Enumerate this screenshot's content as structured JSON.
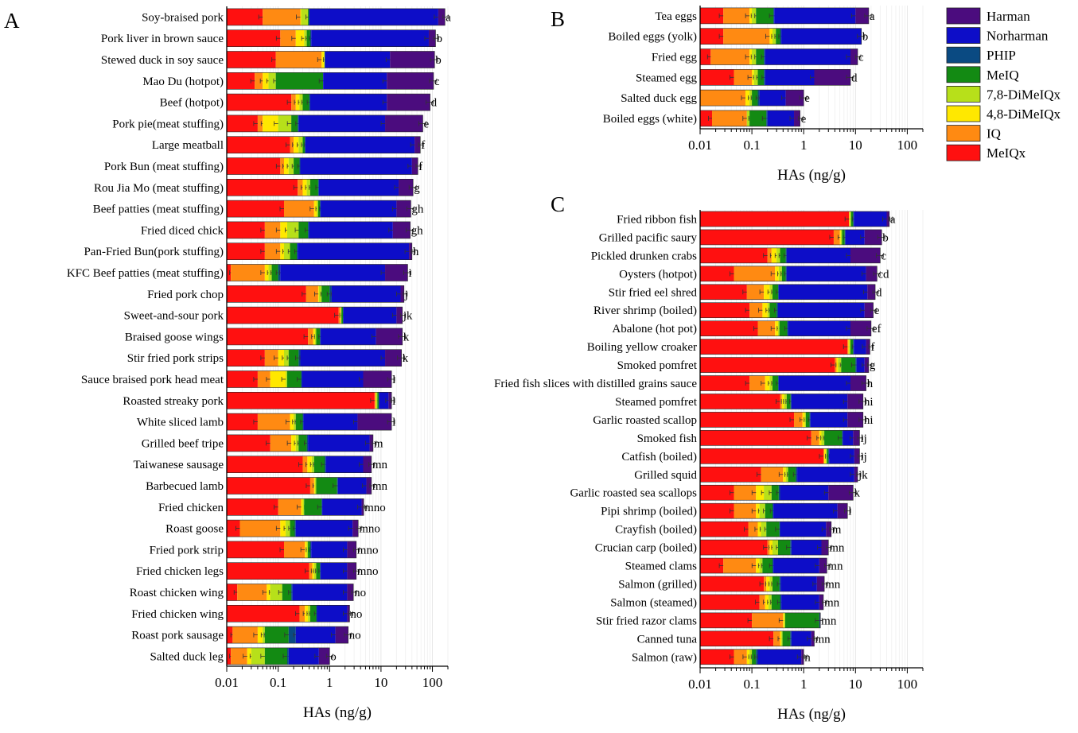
{
  "legend": {
    "items": [
      {
        "name": "Harman",
        "color": "#4b0c7e"
      },
      {
        "name": "Norharman",
        "color": "#0d0dc8"
      },
      {
        "name": "PHIP",
        "color": "#0a4a82"
      },
      {
        "name": "MeIQ",
        "color": "#138a13"
      },
      {
        "name": "7,8-DiMeIQx",
        "color": "#b7e01a"
      },
      {
        "name": "4,8-DiMeIQx",
        "color": "#ffe800"
      },
      {
        "name": "IQ",
        "color": "#ff8a12"
      },
      {
        "name": "MeIQx",
        "color": "#ff1010"
      }
    ]
  },
  "chart_data": [
    {
      "type": "bar",
      "panel_label": "A",
      "orientation": "horizontal-stacked",
      "xscale": "log",
      "xlim": [
        0.01,
        200
      ],
      "xticks": [
        "0.01",
        "0.1",
        "1",
        "10",
        "100"
      ],
      "xlabel": "HAs (ng/g)",
      "stack_order": [
        "MeIQx",
        "IQ",
        "4,8-DiMeIQx",
        "7,8-DiMeIQx",
        "MeIQ",
        "PHIP",
        "Norharman",
        "Harman"
      ],
      "categories": [
        {
          "name": "Soy-braised pork",
          "group": "a",
          "b": [
            0.05,
            0.27,
            0.28,
            0.38,
            0.4,
            0.4,
            130,
            175
          ]
        },
        {
          "name": "Pork liver in brown sauce",
          "group": "b",
          "b": [
            0.11,
            0.22,
            0.32,
            0.36,
            0.42,
            0.44,
            85,
            115
          ]
        },
        {
          "name": "Stewed duck in soy sauce",
          "group": "b",
          "b": [
            0.09,
            0.7,
            0.78,
            0.8,
            0.8,
            0.82,
            15,
            110
          ]
        },
        {
          "name": "Mao Du (hotpot)",
          "group": "c",
          "b": [
            0.035,
            0.05,
            0.065,
            0.09,
            0.75,
            0.75,
            13,
            105
          ]
        },
        {
          "name": "Beef (hotpot)",
          "group": "d",
          "b": [
            0.18,
            0.22,
            0.26,
            0.3,
            0.4,
            0.42,
            13,
            90
          ]
        },
        {
          "name": "Pork pie(meat stuffing)",
          "group": "e",
          "b": [
            0.04,
            0.05,
            0.1,
            0.18,
            0.24,
            0.25,
            12,
            65
          ]
        },
        {
          "name": "Large meatball",
          "group": "f",
          "b": [
            0.17,
            0.2,
            0.25,
            0.3,
            0.33,
            0.34,
            45,
            58
          ]
        },
        {
          "name": "Pork Bun (meat stuffing)",
          "group": "f",
          "b": [
            0.11,
            0.13,
            0.16,
            0.2,
            0.26,
            0.27,
            40,
            52
          ]
        },
        {
          "name": "Rou Jia Mo (meat stuffing)",
          "group": "g",
          "b": [
            0.24,
            0.3,
            0.36,
            0.42,
            0.6,
            0.62,
            22,
            42
          ]
        },
        {
          "name": "Beef patties (meat stuffing)",
          "group": "gh",
          "b": [
            0.13,
            0.5,
            0.56,
            0.6,
            0.65,
            0.67,
            20,
            38
          ]
        },
        {
          "name": "Fried diced chick",
          "group": "gh",
          "b": [
            0.055,
            0.11,
            0.15,
            0.25,
            0.38,
            0.4,
            17,
            37
          ]
        },
        {
          "name": "Pan-Fried Bun(pork stuffing)",
          "group": "h",
          "b": [
            0.055,
            0.11,
            0.13,
            0.17,
            0.23,
            0.24,
            35,
            40
          ]
        },
        {
          "name": "KFC Beef patties (meat stuffing)",
          "group": "i",
          "b": [
            0.012,
            0.055,
            0.065,
            0.075,
            0.1,
            0.11,
            12,
            33
          ]
        },
        {
          "name": "Fried pork chop",
          "group": "j",
          "b": [
            0.35,
            0.6,
            0.62,
            0.7,
            1.0,
            1.1,
            24,
            28
          ]
        },
        {
          "name": "Sweet-and-sour pork",
          "group": "jk",
          "b": [
            1.5,
            1.62,
            1.65,
            1.7,
            1.82,
            1.85,
            20,
            26
          ]
        },
        {
          "name": "Braised goose wings",
          "group": "k",
          "b": [
            0.38,
            0.48,
            0.52,
            0.55,
            0.65,
            0.67,
            8,
            26
          ]
        },
        {
          "name": "Stir fried pork strips",
          "group": "k",
          "b": [
            0.055,
            0.1,
            0.13,
            0.16,
            0.25,
            0.27,
            12,
            25
          ]
        },
        {
          "name": "Sauce braised pork head meat",
          "group": "l",
          "b": [
            0.04,
            0.07,
            0.14,
            0.15,
            0.28,
            0.29,
            4.5,
            16
          ]
        },
        {
          "name": "Roasted streaky pork",
          "group": "l",
          "b": [
            7.5,
            7.8,
            8.0,
            8.5,
            9.0,
            9.2,
            14,
            16
          ]
        },
        {
          "name": "White sliced lamb",
          "group": "l",
          "b": [
            0.04,
            0.17,
            0.2,
            0.22,
            0.3,
            0.31,
            3.5,
            16
          ]
        },
        {
          "name": "Grilled beef tripe",
          "group": "m",
          "b": [
            0.07,
            0.18,
            0.22,
            0.25,
            0.36,
            0.38,
            6,
            7
          ]
        },
        {
          "name": "Taiwanese sausage",
          "group": "mn",
          "b": [
            0.3,
            0.37,
            0.45,
            0.5,
            0.8,
            0.85,
            4.5,
            6.5
          ]
        },
        {
          "name": "Barbecued lamb",
          "group": "mn",
          "b": [
            0.42,
            0.5,
            0.52,
            0.55,
            1.4,
            1.45,
            5.2,
            6.5
          ]
        },
        {
          "name": "Fried chicken",
          "group": "mno",
          "b": [
            0.1,
            0.28,
            0.3,
            0.32,
            0.7,
            0.72,
            4.2,
            4.6
          ]
        },
        {
          "name": "Roast goose",
          "group": "mno",
          "b": [
            0.018,
            0.11,
            0.14,
            0.17,
            0.21,
            0.22,
            2.8,
            3.6
          ]
        },
        {
          "name": "Fried pork strip",
          "group": "mno",
          "b": [
            0.13,
            0.33,
            0.36,
            0.38,
            0.42,
            0.44,
            2.2,
            3.3
          ]
        },
        {
          "name": "Fried chicken legs",
          "group": "mno",
          "b": [
            0.4,
            0.46,
            0.5,
            0.55,
            0.65,
            0.67,
            2.2,
            3.3
          ]
        },
        {
          "name": "Roast chicken wing",
          "group": "no",
          "b": [
            0.016,
            0.06,
            0.07,
            0.12,
            0.18,
            0.19,
            2.2,
            2.9
          ]
        },
        {
          "name": "Fried chicken wing",
          "group": "no",
          "b": [
            0.26,
            0.33,
            0.38,
            0.42,
            0.55,
            0.57,
            2.2,
            2.45
          ]
        },
        {
          "name": "Roast pork sausage",
          "group": "no",
          "b": [
            0.013,
            0.04,
            0.05,
            0.055,
            0.16,
            0.22,
            1.3,
            2.3
          ]
        },
        {
          "name": "Salted duck leg",
          "group": "o",
          "b": [
            0.012,
            0.025,
            0.03,
            0.055,
            0.15,
            0.16,
            0.62,
            1.0
          ]
        }
      ]
    },
    {
      "type": "bar",
      "panel_label": "B",
      "orientation": "horizontal-stacked",
      "xscale": "log",
      "xlim": [
        0.01,
        200
      ],
      "xticks": [
        "0.01",
        "0.1",
        "1",
        "10",
        "100"
      ],
      "xlabel": "HAs (ng/g)",
      "stack_order": [
        "MeIQx",
        "IQ",
        "4,8-DiMeIQx",
        "7,8-DiMeIQx",
        "MeIQ",
        "PHIP",
        "Norharman",
        "Harman"
      ],
      "categories": [
        {
          "name": "Tea eggs",
          "group": "a",
          "b": [
            0.028,
            0.09,
            0.1,
            0.12,
            0.26,
            0.27,
            10,
            18
          ]
        },
        {
          "name": "Boiled eggs (yolk)",
          "group": "b",
          "b": [
            0.028,
            0.22,
            0.25,
            0.29,
            0.35,
            0.37,
            13,
            13
          ]
        },
        {
          "name": "Fried egg",
          "group": "c",
          "b": [
            0.016,
            0.09,
            0.1,
            0.12,
            0.17,
            0.18,
            8,
            11
          ]
        },
        {
          "name": "Steamed egg",
          "group": "d",
          "b": [
            0.045,
            0.1,
            0.11,
            0.13,
            0.17,
            0.18,
            1.6,
            8
          ]
        },
        {
          "name": "Salted duck egg",
          "group": "e",
          "b": [
            0.01,
            0.075,
            0.09,
            0.1,
            0.13,
            0.14,
            0.45,
            1.0
          ]
        },
        {
          "name": "Boiled eggs (white)",
          "group": "e",
          "b": [
            0.017,
            0.08,
            0.08,
            0.09,
            0.19,
            0.2,
            0.65,
            0.85
          ]
        }
      ]
    },
    {
      "type": "bar",
      "panel_label": "C",
      "orientation": "horizontal-stacked",
      "xscale": "log",
      "xlim": [
        0.01,
        200
      ],
      "xticks": [
        "0.01",
        "0.1",
        "1",
        "10",
        "100"
      ],
      "xlabel": "HAs (ng/g)",
      "stack_order": [
        "MeIQx",
        "IQ",
        "4,8-DiMeIQx",
        "7,8-DiMeIQx",
        "MeIQ",
        "PHIP",
        "Norharman",
        "Harman"
      ],
      "categories": [
        {
          "name": "Fried ribbon fish",
          "group": "a",
          "b": [
            7.5,
            7.6,
            7.8,
            8.2,
            9.0,
            9.3,
            40,
            45
          ]
        },
        {
          "name": "Grilled pacific saury",
          "group": "b",
          "b": [
            3.8,
            5.0,
            5.2,
            5.5,
            6.2,
            6.4,
            15,
            32
          ]
        },
        {
          "name": "Pickled drunken crabs",
          "group": "c",
          "b": [
            0.2,
            0.24,
            0.3,
            0.35,
            0.45,
            0.47,
            8,
            30
          ]
        },
        {
          "name": "Oysters (hotpot)",
          "group": "cd",
          "b": [
            0.045,
            0.28,
            0.33,
            0.38,
            0.45,
            0.47,
            16,
            26
          ]
        },
        {
          "name": "Stir fried eel shred",
          "group": "d",
          "b": [
            0.08,
            0.17,
            0.22,
            0.25,
            0.32,
            0.33,
            17,
            24
          ]
        },
        {
          "name": "River shrimp (boiled)",
          "group": "e",
          "b": [
            0.09,
            0.16,
            0.2,
            0.22,
            0.3,
            0.32,
            15,
            22
          ]
        },
        {
          "name": "Abalone (hot pot)",
          "group": "ef",
          "b": [
            0.13,
            0.28,
            0.32,
            0.34,
            0.48,
            0.5,
            8,
            20
          ]
        },
        {
          "name": "Boiling yellow croaker",
          "group": "f",
          "b": [
            7,
            7.3,
            7.5,
            8,
            9,
            9.3,
            16,
            19
          ]
        },
        {
          "name": "Smoked pomfret",
          "group": "g",
          "b": [
            4,
            4.3,
            4.6,
            5.3,
            10,
            10.5,
            15,
            18
          ]
        },
        {
          "name": "Fried fish slices with distilled grains sauce",
          "group": "h",
          "b": [
            0.09,
            0.18,
            0.22,
            0.25,
            0.32,
            0.33,
            8,
            16
          ]
        },
        {
          "name": "Steamed pomfret",
          "group": "hi",
          "b": [
            0.35,
            0.38,
            0.42,
            0.47,
            0.56,
            0.58,
            7,
            14
          ]
        },
        {
          "name": "Garlic roasted scallop",
          "group": "hi",
          "b": [
            0.65,
            0.95,
            1.05,
            1.1,
            1.3,
            1.35,
            7,
            14
          ]
        },
        {
          "name": "Smoked fish",
          "group": "ij",
          "b": [
            1.4,
            2.0,
            2.2,
            2.5,
            5.5,
            5.7,
            9,
            12
          ]
        },
        {
          "name": "Catfish (boiled)",
          "group": "ij",
          "b": [
            2.4,
            2.5,
            2.7,
            2.8,
            3.0,
            3.1,
            9.5,
            12
          ]
        },
        {
          "name": "Grilled squid",
          "group": "jk",
          "b": [
            0.15,
            0.4,
            0.45,
            0.5,
            0.7,
            0.75,
            9.5,
            11
          ]
        },
        {
          "name": "Garlic roasted sea scallops",
          "group": "k",
          "b": [
            0.045,
            0.12,
            0.17,
            0.24,
            0.33,
            0.35,
            3,
            9
          ]
        },
        {
          "name": "Pipi shrimp (boiled)",
          "group": "l",
          "b": [
            0.045,
            0.12,
            0.14,
            0.18,
            0.25,
            0.26,
            4.5,
            7
          ]
        },
        {
          "name": "Crayfish (boiled)",
          "group": "m",
          "b": [
            0.085,
            0.13,
            0.15,
            0.19,
            0.34,
            0.35,
            2.7,
            3.4
          ]
        },
        {
          "name": "Crucian carp (boiled)",
          "group": "mn",
          "b": [
            0.2,
            0.22,
            0.25,
            0.32,
            0.55,
            0.58,
            2.2,
            3.0
          ]
        },
        {
          "name": "Steamed clams",
          "group": "mn",
          "b": [
            0.028,
            0.12,
            0.14,
            0.16,
            0.25,
            0.26,
            2.0,
            2.8
          ]
        },
        {
          "name": "Salmon (grilled)",
          "group": "mn",
          "b": [
            0.17,
            0.19,
            0.22,
            0.25,
            0.34,
            0.36,
            1.8,
            2.5
          ]
        },
        {
          "name": "Salmon (steamed)",
          "group": "mn",
          "b": [
            0.14,
            0.18,
            0.21,
            0.24,
            0.35,
            0.37,
            2.0,
            2.4
          ]
        },
        {
          "name": "Stir fried razor clams",
          "group": "mn",
          "b": [
            0.1,
            0.4,
            0.42,
            0.44,
            2.0,
            2.05,
            2.05,
            2.1
          ]
        },
        {
          "name": "Canned tuna",
          "group": "mn",
          "b": [
            0.26,
            0.35,
            0.37,
            0.39,
            0.55,
            0.58,
            1.4,
            1.6
          ]
        },
        {
          "name": "Salmon (raw)",
          "group": "n",
          "b": [
            0.045,
            0.08,
            0.09,
            0.1,
            0.12,
            0.13,
            0.9,
            1.0
          ]
        }
      ]
    }
  ]
}
